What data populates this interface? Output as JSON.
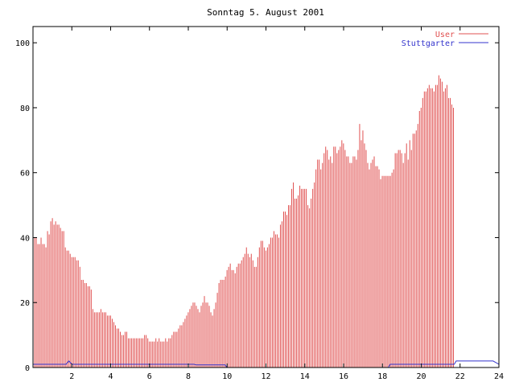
{
  "colors": {
    "user": "#e05050",
    "stuttgarter": "#3333cc",
    "axis": "#000000"
  },
  "chart_data": {
    "type": "bar",
    "title": "Sonntag 5. August 2001",
    "xlabel": "",
    "ylabel": "",
    "xlim": [
      0,
      24
    ],
    "ylim": [
      0,
      105
    ],
    "x_tick_labels": [
      "2",
      "4",
      "6",
      "8",
      "10",
      "12",
      "14",
      "16",
      "18",
      "20",
      "22",
      "24"
    ],
    "x_ticks": [
      2,
      4,
      6,
      8,
      10,
      12,
      14,
      16,
      18,
      20,
      22,
      24
    ],
    "y_tick_labels": [
      "0",
      "20",
      "40",
      "60",
      "80",
      "100"
    ],
    "y_ticks": [
      0,
      20,
      40,
      60,
      80,
      100
    ],
    "grid": false,
    "legend": "top-right",
    "series": [
      {
        "name": "User",
        "style": "impulses",
        "x_start": 0.083,
        "x_step": 0.0833,
        "values": [
          40,
          40,
          38,
          38,
          40,
          38,
          38,
          37,
          42,
          41,
          45,
          46,
          44,
          45,
          44,
          44,
          43,
          42,
          42,
          37,
          36,
          36,
          35,
          34,
          34,
          34,
          33,
          33,
          31,
          27,
          27,
          26,
          26,
          25,
          25,
          24,
          18,
          17,
          17,
          17,
          17,
          18,
          17,
          17,
          17,
          16,
          16,
          16,
          15,
          14,
          13,
          12,
          12,
          11,
          10,
          10,
          11,
          11,
          9,
          9,
          9,
          9,
          9,
          9,
          9,
          9,
          9,
          9,
          10,
          10,
          9,
          8,
          8,
          8,
          8,
          9,
          8,
          9,
          8,
          8,
          8,
          9,
          8,
          9,
          9,
          10,
          11,
          11,
          11,
          12,
          13,
          13,
          14,
          15,
          16,
          17,
          18,
          19,
          20,
          20,
          19,
          18,
          17,
          19,
          20,
          22,
          20,
          20,
          19,
          17,
          16,
          18,
          20,
          23,
          26,
          27,
          27,
          27,
          28,
          30,
          31,
          32,
          30,
          30,
          29,
          31,
          32,
          32,
          33,
          34,
          35,
          37,
          35,
          34,
          35,
          33,
          31,
          31,
          34,
          37,
          39,
          39,
          37,
          36,
          37,
          38,
          40,
          40,
          42,
          41,
          41,
          40,
          44,
          45,
          48,
          48,
          47,
          50,
          50,
          55,
          57,
          52,
          52,
          53,
          56,
          55,
          55,
          55,
          55,
          50,
          49,
          52,
          55,
          57,
          61,
          64,
          64,
          61,
          63,
          66,
          68,
          67,
          64,
          65,
          63,
          68,
          68,
          66,
          67,
          68,
          70,
          69,
          67,
          65,
          65,
          63,
          63,
          65,
          65,
          64,
          67,
          75,
          70,
          73,
          69,
          67,
          63,
          61,
          63,
          64,
          65,
          62,
          62,
          61,
          58,
          59,
          59,
          59,
          59,
          59,
          59,
          60,
          61,
          66,
          66,
          67,
          67,
          66,
          63,
          66,
          69,
          64,
          70,
          67,
          72,
          72,
          73,
          75,
          79,
          80,
          83,
          85,
          85,
          86,
          87,
          86,
          86,
          85,
          87,
          87,
          90,
          89,
          88,
          85,
          86,
          87,
          83,
          83,
          81,
          80
        ]
      },
      {
        "name": "Stuttgarter",
        "style": "lines",
        "points": [
          [
            0,
            1
          ],
          [
            1.7,
            1
          ],
          [
            1.85,
            2
          ],
          [
            2.0,
            1
          ],
          [
            8.3,
            1
          ],
          [
            8.4,
            0.8
          ],
          [
            9.9,
            0.8
          ],
          [
            10.0,
            0
          ],
          [
            18.3,
            0
          ],
          [
            18.4,
            1
          ],
          [
            21.7,
            1
          ],
          [
            21.8,
            2
          ],
          [
            23.7,
            2
          ],
          [
            24,
            1
          ]
        ]
      }
    ]
  }
}
